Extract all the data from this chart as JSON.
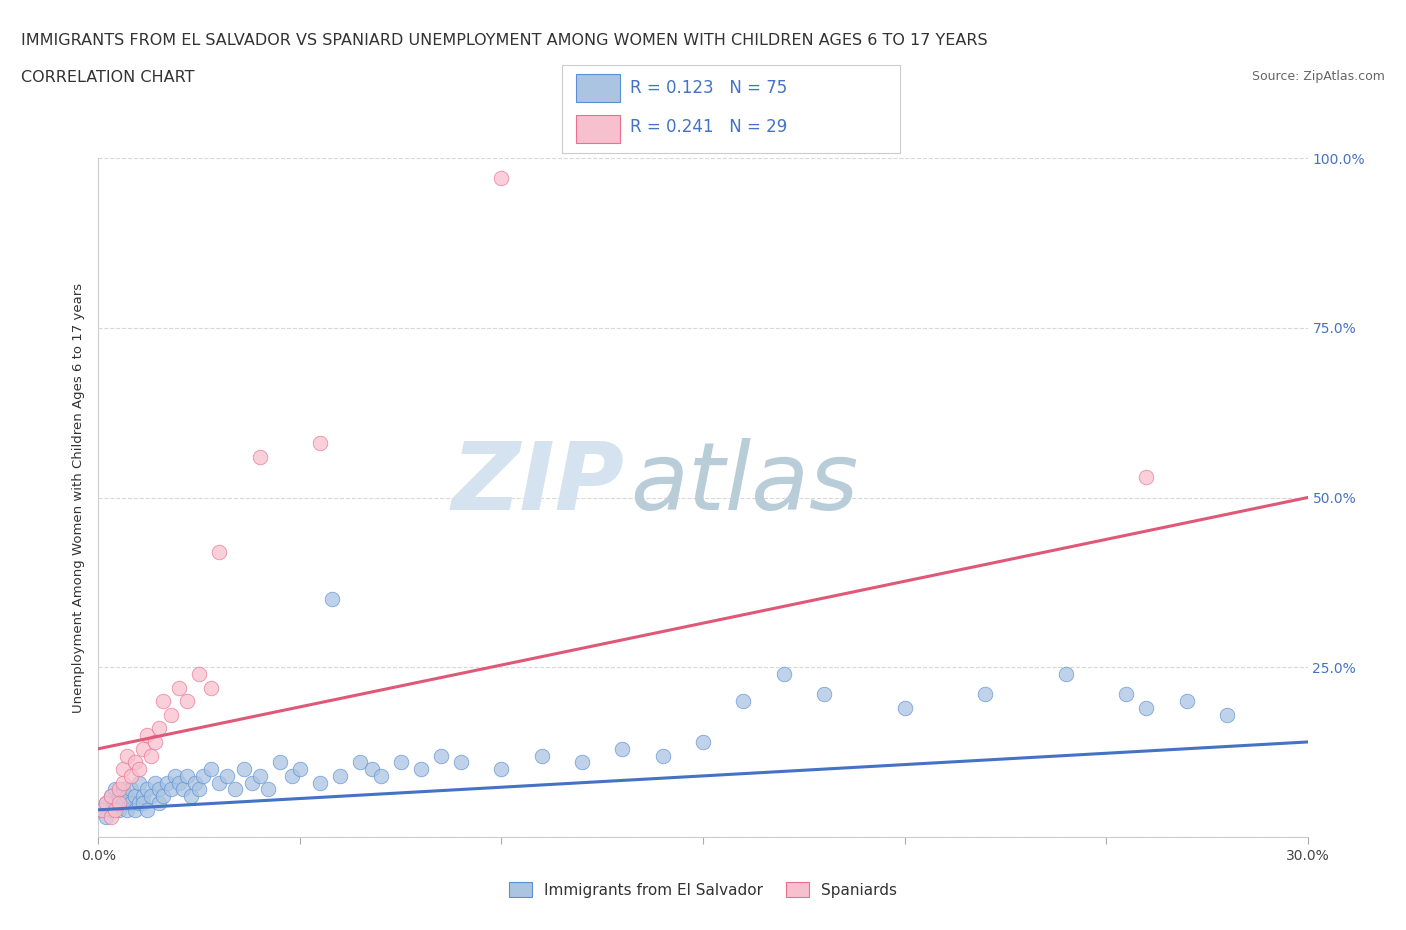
{
  "title_line1": "IMMIGRANTS FROM EL SALVADOR VS SPANIARD UNEMPLOYMENT AMONG WOMEN WITH CHILDREN AGES 6 TO 17 YEARS",
  "title_line2": "CORRELATION CHART",
  "source_text": "Source: ZipAtlas.com",
  "ylabel": "Unemployment Among Women with Children Ages 6 to 17 years",
  "xlim": [
    0.0,
    0.3
  ],
  "ylim": [
    0.0,
    1.0
  ],
  "xticks": [
    0.0,
    0.05,
    0.1,
    0.15,
    0.2,
    0.25,
    0.3
  ],
  "xticklabels": [
    "0.0%",
    "",
    "",
    "",
    "",
    "",
    "30.0%"
  ],
  "yticks": [
    0.0,
    0.25,
    0.5,
    0.75,
    1.0
  ],
  "right_yticklabels": [
    "",
    "25.0%",
    "50.0%",
    "75.0%",
    "100.0%"
  ],
  "blue_color": "#aac4e2",
  "blue_edge_color": "#5b8fd4",
  "blue_line_color": "#4472c4",
  "pink_color": "#f7c0ce",
  "pink_edge_color": "#e87090",
  "pink_line_color": "#e05878",
  "watermark_zip": "ZIP",
  "watermark_atlas": "atlas",
  "watermark_color": "#d0dff0",
  "watermark_atlas_color": "#b8c8d8",
  "legend_bottom_blue": "Immigrants from El Salvador",
  "legend_bottom_pink": "Spaniards",
  "background_color": "#ffffff",
  "grid_color": "#d8d8d8",
  "blue_scatter_x": [
    0.001,
    0.002,
    0.002,
    0.003,
    0.003,
    0.004,
    0.004,
    0.005,
    0.005,
    0.006,
    0.006,
    0.007,
    0.007,
    0.008,
    0.008,
    0.009,
    0.009,
    0.01,
    0.01,
    0.011,
    0.011,
    0.012,
    0.012,
    0.013,
    0.014,
    0.015,
    0.015,
    0.016,
    0.017,
    0.018,
    0.019,
    0.02,
    0.021,
    0.022,
    0.023,
    0.024,
    0.025,
    0.026,
    0.028,
    0.03,
    0.032,
    0.034,
    0.036,
    0.038,
    0.04,
    0.042,
    0.045,
    0.048,
    0.05,
    0.055,
    0.058,
    0.06,
    0.065,
    0.068,
    0.07,
    0.075,
    0.08,
    0.085,
    0.09,
    0.1,
    0.11,
    0.12,
    0.13,
    0.14,
    0.15,
    0.16,
    0.17,
    0.18,
    0.2,
    0.22,
    0.24,
    0.255,
    0.26,
    0.27,
    0.28
  ],
  "blue_scatter_y": [
    0.04,
    0.05,
    0.03,
    0.06,
    0.04,
    0.05,
    0.07,
    0.04,
    0.06,
    0.05,
    0.07,
    0.04,
    0.06,
    0.05,
    0.07,
    0.04,
    0.06,
    0.05,
    0.08,
    0.06,
    0.05,
    0.07,
    0.04,
    0.06,
    0.08,
    0.05,
    0.07,
    0.06,
    0.08,
    0.07,
    0.09,
    0.08,
    0.07,
    0.09,
    0.06,
    0.08,
    0.07,
    0.09,
    0.1,
    0.08,
    0.09,
    0.07,
    0.1,
    0.08,
    0.09,
    0.07,
    0.11,
    0.09,
    0.1,
    0.08,
    0.35,
    0.09,
    0.11,
    0.1,
    0.09,
    0.11,
    0.1,
    0.12,
    0.11,
    0.1,
    0.12,
    0.11,
    0.13,
    0.12,
    0.14,
    0.2,
    0.24,
    0.21,
    0.19,
    0.21,
    0.24,
    0.21,
    0.19,
    0.2,
    0.18
  ],
  "pink_scatter_x": [
    0.001,
    0.002,
    0.003,
    0.003,
    0.004,
    0.005,
    0.005,
    0.006,
    0.006,
    0.007,
    0.008,
    0.009,
    0.01,
    0.011,
    0.012,
    0.013,
    0.014,
    0.015,
    0.016,
    0.018,
    0.02,
    0.022,
    0.025,
    0.028,
    0.03,
    0.04,
    0.055,
    0.1,
    0.26
  ],
  "pink_scatter_y": [
    0.04,
    0.05,
    0.03,
    0.06,
    0.04,
    0.05,
    0.07,
    0.1,
    0.08,
    0.12,
    0.09,
    0.11,
    0.1,
    0.13,
    0.15,
    0.12,
    0.14,
    0.16,
    0.2,
    0.18,
    0.22,
    0.2,
    0.24,
    0.22,
    0.42,
    0.56,
    0.58,
    0.97,
    0.53
  ],
  "blue_trend_x": [
    0.0,
    0.3
  ],
  "blue_trend_y": [
    0.04,
    0.14
  ],
  "pink_trend_x": [
    0.0,
    0.3
  ],
  "pink_trend_y": [
    0.13,
    0.5
  ]
}
